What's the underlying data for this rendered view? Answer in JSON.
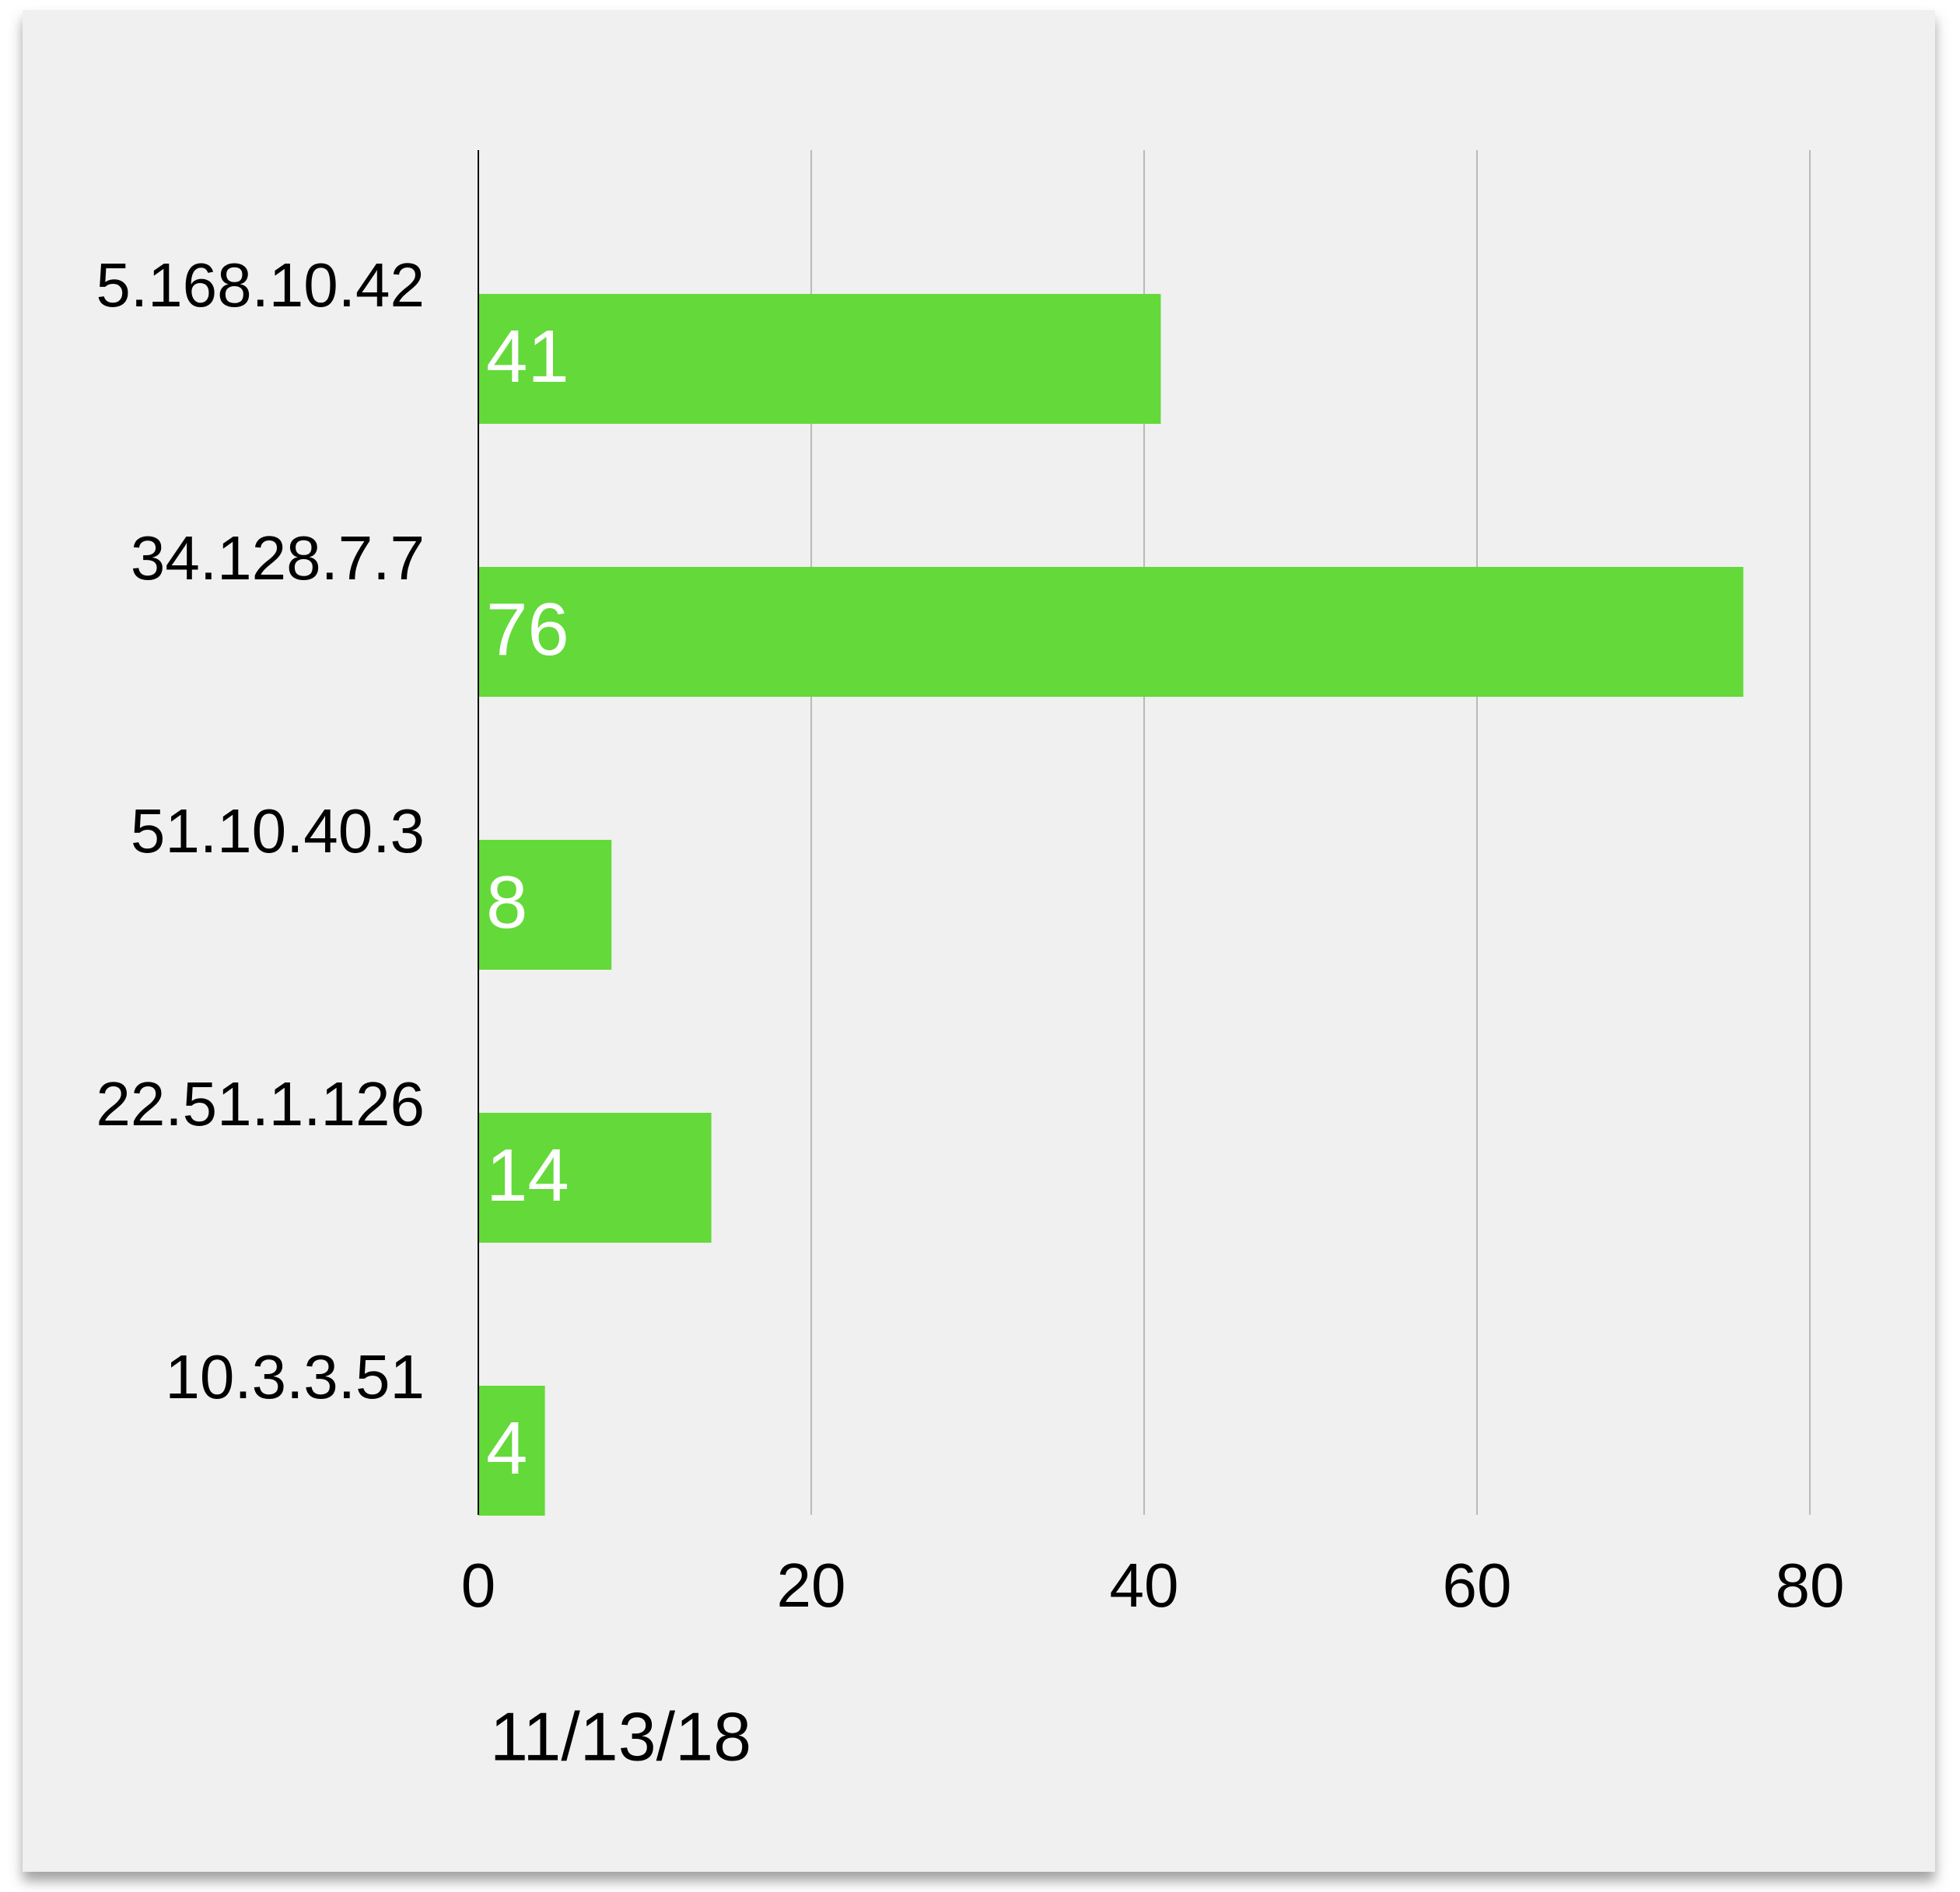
{
  "chart_data": {
    "type": "hbar",
    "categories": [
      "5.168.10.42",
      "34.128.7.7",
      "51.10.40.3",
      "22.51.1.126",
      "10.3.3.51"
    ],
    "series": [
      {
        "name": "11/13/18",
        "color": "#63d93a",
        "values": [
          41,
          76,
          8,
          14,
          4
        ]
      }
    ],
    "xlim": [
      0,
      80
    ],
    "xticks": [
      0,
      20,
      40,
      60,
      80
    ],
    "grid": true
  }
}
